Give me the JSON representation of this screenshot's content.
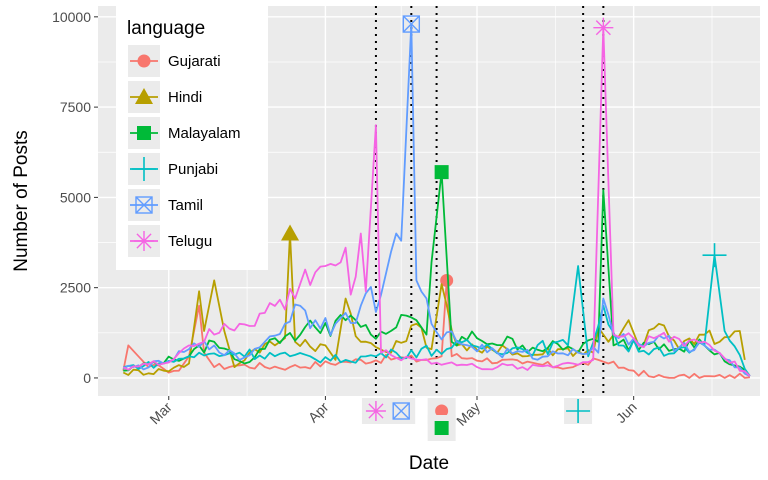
{
  "chart_data": {
    "type": "line",
    "title": "",
    "xlabel": "Date",
    "ylabel": "Number of Posts",
    "x_domain": [
      "2018-02-15",
      "2018-06-26"
    ],
    "ylim": [
      -500,
      10300
    ],
    "y_ticks": [
      0,
      2500,
      5000,
      7500,
      10000
    ],
    "y_tick_labels": [
      "0",
      "2500",
      "5000",
      "7500",
      "10000"
    ],
    "x_ticks": [
      {
        "date": "2018-03-01",
        "label": "Mar"
      },
      {
        "date": "2018-04-01",
        "label": "Apr"
      },
      {
        "date": "2018-05-01",
        "label": "May"
      },
      {
        "date": "2018-06-01",
        "label": "Jun"
      }
    ],
    "grid": true,
    "legend": {
      "title": "language",
      "position": "top-left"
    },
    "event_lines": [
      "2018-04-11",
      "2018-04-18",
      "2018-04-23",
      "2018-05-22",
      "2018-05-26"
    ],
    "series": [
      {
        "name": "Gujarati",
        "color": "#F8766D",
        "marker": "circle",
        "points": [
          [
            "2018-02-20",
            200
          ],
          [
            "2018-02-21",
            900
          ],
          [
            "2018-02-23",
            600
          ],
          [
            "2018-02-25",
            300
          ],
          [
            "2018-02-28",
            250
          ],
          [
            "2018-03-03",
            200
          ],
          [
            "2018-03-05",
            600
          ],
          [
            "2018-03-07",
            2000
          ],
          [
            "2018-03-08",
            700
          ],
          [
            "2018-03-10",
            300
          ],
          [
            "2018-03-15",
            350
          ],
          [
            "2018-03-25",
            300
          ],
          [
            "2018-04-05",
            450
          ],
          [
            "2018-04-15",
            550
          ],
          [
            "2018-04-20",
            500
          ],
          [
            "2018-04-24",
            600
          ],
          [
            "2018-04-25",
            2700
          ],
          [
            "2018-04-26",
            600
          ],
          [
            "2018-04-30",
            550
          ],
          [
            "2018-05-10",
            400
          ],
          [
            "2018-05-20",
            300
          ],
          [
            "2018-05-25",
            500
          ],
          [
            "2018-05-27",
            400
          ],
          [
            "2018-06-01",
            200
          ],
          [
            "2018-06-05",
            20
          ],
          [
            "2018-06-24",
            20
          ]
        ],
        "peak": {
          "date": "2018-04-25",
          "value": 2700
        },
        "bottom_marker": {
          "date": "2018-04-24",
          "row": 1
        }
      },
      {
        "name": "Hindi",
        "color": "#B79F00",
        "marker": "triangle",
        "points": [
          [
            "2018-02-20",
            150
          ],
          [
            "2018-02-28",
            200
          ],
          [
            "2018-03-05",
            400
          ],
          [
            "2018-03-07",
            2400
          ],
          [
            "2018-03-08",
            1300
          ],
          [
            "2018-03-10",
            2700
          ],
          [
            "2018-03-12",
            1300
          ],
          [
            "2018-03-14",
            300
          ],
          [
            "2018-03-18",
            800
          ],
          [
            "2018-03-22",
            900
          ],
          [
            "2018-03-24",
            1100
          ],
          [
            "2018-03-25",
            4000
          ],
          [
            "2018-03-26",
            1000
          ],
          [
            "2018-04-01",
            900
          ],
          [
            "2018-04-03",
            500
          ],
          [
            "2018-04-05",
            2200
          ],
          [
            "2018-04-08",
            1000
          ],
          [
            "2018-04-14",
            700
          ],
          [
            "2018-04-19",
            1500
          ],
          [
            "2018-04-22",
            800
          ],
          [
            "2018-04-24",
            2600
          ],
          [
            "2018-04-27",
            900
          ],
          [
            "2018-05-02",
            700
          ],
          [
            "2018-05-06",
            900
          ],
          [
            "2018-05-10",
            600
          ],
          [
            "2018-05-18",
            800
          ],
          [
            "2018-05-24",
            700
          ],
          [
            "2018-05-25",
            1400
          ],
          [
            "2018-05-27",
            1000
          ],
          [
            "2018-05-31",
            1600
          ],
          [
            "2018-06-02",
            900
          ],
          [
            "2018-06-06",
            1500
          ],
          [
            "2018-06-10",
            800
          ],
          [
            "2018-06-14",
            1200
          ],
          [
            "2018-06-18",
            1000
          ],
          [
            "2018-06-22",
            1300
          ],
          [
            "2018-06-23",
            500
          ]
        ],
        "peak": {
          "date": "2018-03-25",
          "value": 4000
        }
      },
      {
        "name": "Malayalam",
        "color": "#00BA38",
        "marker": "square",
        "points": [
          [
            "2018-02-20",
            200
          ],
          [
            "2018-02-25",
            400
          ],
          [
            "2018-03-05",
            600
          ],
          [
            "2018-03-10",
            1000
          ],
          [
            "2018-03-16",
            400
          ],
          [
            "2018-03-22",
            1100
          ],
          [
            "2018-03-30",
            1400
          ],
          [
            "2018-04-05",
            1600
          ],
          [
            "2018-04-10",
            1200
          ],
          [
            "2018-04-15",
            1400
          ],
          [
            "2018-04-19",
            1600
          ],
          [
            "2018-04-21",
            1200
          ],
          [
            "2018-04-22",
            3200
          ],
          [
            "2018-04-24",
            5700
          ],
          [
            "2018-04-26",
            1000
          ],
          [
            "2018-05-01",
            1100
          ],
          [
            "2018-05-10",
            900
          ],
          [
            "2018-05-20",
            800
          ],
          [
            "2018-05-25",
            1000
          ],
          [
            "2018-05-26",
            5200
          ],
          [
            "2018-05-28",
            900
          ],
          [
            "2018-06-05",
            1000
          ],
          [
            "2018-06-15",
            900
          ],
          [
            "2018-06-24",
            50
          ]
        ],
        "peak": {
          "date": "2018-04-24",
          "value": 5700
        },
        "bottom_marker": {
          "date": "2018-04-24",
          "row": 2
        }
      },
      {
        "name": "Punjabi",
        "color": "#00BFC4",
        "marker": "plus",
        "points": [
          [
            "2018-02-20",
            300
          ],
          [
            "2018-02-28",
            400
          ],
          [
            "2018-03-05",
            600
          ],
          [
            "2018-03-15",
            700
          ],
          [
            "2018-03-25",
            600
          ],
          [
            "2018-04-05",
            500
          ],
          [
            "2018-04-15",
            700
          ],
          [
            "2018-04-25",
            800
          ],
          [
            "2018-04-30",
            900
          ],
          [
            "2018-05-10",
            800
          ],
          [
            "2018-05-19",
            900
          ],
          [
            "2018-05-21",
            3100
          ],
          [
            "2018-05-23",
            600
          ],
          [
            "2018-05-26",
            2000
          ],
          [
            "2018-05-29",
            900
          ],
          [
            "2018-06-05",
            800
          ],
          [
            "2018-06-12",
            700
          ],
          [
            "2018-06-15",
            900
          ],
          [
            "2018-06-17",
            3400
          ],
          [
            "2018-06-19",
            1300
          ],
          [
            "2018-06-24",
            50
          ]
        ],
        "peak": {
          "date": "2018-06-17",
          "value": 3400
        },
        "bottom_marker": {
          "date": "2018-05-21",
          "row": 1
        }
      },
      {
        "name": "Tamil",
        "color": "#619CFF",
        "marker": "boxcross",
        "points": [
          [
            "2018-02-20",
            250
          ],
          [
            "2018-02-28",
            400
          ],
          [
            "2018-03-05",
            800
          ],
          [
            "2018-03-10",
            900
          ],
          [
            "2018-03-15",
            500
          ],
          [
            "2018-03-20",
            1000
          ],
          [
            "2018-03-24",
            1500
          ],
          [
            "2018-03-27",
            2000
          ],
          [
            "2018-03-30",
            1600
          ],
          [
            "2018-04-03",
            1500
          ],
          [
            "2018-04-05",
            1800
          ],
          [
            "2018-04-08",
            2000
          ],
          [
            "2018-04-12",
            2300
          ],
          [
            "2018-04-14",
            3500
          ],
          [
            "2018-04-15",
            4000
          ],
          [
            "2018-04-16",
            3800
          ],
          [
            "2018-04-18",
            9800
          ],
          [
            "2018-04-19",
            2700
          ],
          [
            "2018-04-22",
            1500
          ],
          [
            "2018-04-27",
            1000
          ],
          [
            "2018-05-05",
            700
          ],
          [
            "2018-05-15",
            600
          ],
          [
            "2018-05-20",
            800
          ],
          [
            "2018-05-25",
            700
          ],
          [
            "2018-05-26",
            2200
          ],
          [
            "2018-05-29",
            1100
          ],
          [
            "2018-06-05",
            1000
          ],
          [
            "2018-06-15",
            900
          ],
          [
            "2018-06-24",
            50
          ]
        ],
        "peak": {
          "date": "2018-04-18",
          "value": 9800
        },
        "bottom_marker": {
          "date": "2018-04-16",
          "row": 1
        }
      },
      {
        "name": "Telugu",
        "color": "#F564E3",
        "marker": "asterisk",
        "points": [
          [
            "2018-02-20",
            300
          ],
          [
            "2018-02-28",
            400
          ],
          [
            "2018-03-05",
            900
          ],
          [
            "2018-03-10",
            1200
          ],
          [
            "2018-03-15",
            1500
          ],
          [
            "2018-03-20",
            1800
          ],
          [
            "2018-03-26",
            2200
          ],
          [
            "2018-03-28",
            3000
          ],
          [
            "2018-04-01",
            3100
          ],
          [
            "2018-04-04",
            3200
          ],
          [
            "2018-04-07",
            2800
          ],
          [
            "2018-04-08",
            4000
          ],
          [
            "2018-04-09",
            2400
          ],
          [
            "2018-04-11",
            7000
          ],
          [
            "2018-04-12",
            700
          ],
          [
            "2018-04-20",
            500
          ],
          [
            "2018-04-25",
            400
          ],
          [
            "2018-05-01",
            300
          ],
          [
            "2018-05-10",
            300
          ],
          [
            "2018-05-20",
            400
          ],
          [
            "2018-05-24",
            500
          ],
          [
            "2018-05-26",
            9700
          ],
          [
            "2018-05-28",
            1200
          ],
          [
            "2018-06-05",
            1100
          ],
          [
            "2018-06-15",
            1000
          ],
          [
            "2018-06-24",
            50
          ]
        ],
        "peak": {
          "date": "2018-05-26",
          "value": 9700
        },
        "bottom_marker": {
          "date": "2018-04-11",
          "row": 1
        }
      }
    ]
  }
}
